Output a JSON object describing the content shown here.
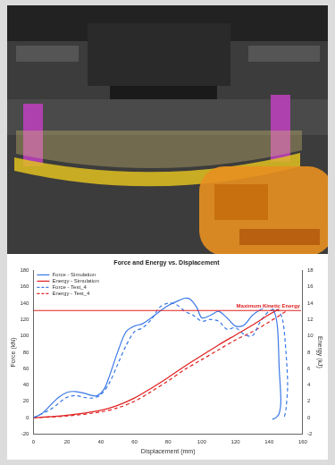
{
  "chart_data": {
    "type": "line",
    "title": "Force and Energy vs. Displacement",
    "x_label": "Displacement (mm)",
    "y_label": "Force (kN)",
    "y2_label": "Energy (kJ)",
    "xlim": [
      0,
      160
    ],
    "xticks": [
      0,
      20,
      40,
      60,
      80,
      100,
      120,
      140,
      160
    ],
    "ylim": [
      -20,
      180
    ],
    "yticks": [
      -20,
      0,
      20,
      40,
      60,
      80,
      100,
      120,
      140,
      160,
      180
    ],
    "y2lim": [
      -2,
      18
    ],
    "y2ticks": [
      -2,
      0,
      2,
      4,
      6,
      8,
      10,
      12,
      14,
      16,
      18
    ],
    "grid": false,
    "legend": "upper left",
    "series": [
      {
        "name": "Force - Simulation",
        "color": "#3a78e6",
        "line_style": "solid",
        "marker": "none",
        "x": [
          0,
          5,
          10,
          15,
          20,
          25,
          30,
          35,
          38,
          42,
          45,
          50,
          55,
          60,
          65,
          70,
          75,
          80,
          85,
          90,
          93,
          97,
          100,
          105,
          110,
          115,
          120,
          125,
          130,
          135,
          140,
          143,
          145,
          146,
          147,
          146,
          144,
          142
        ],
        "values": [
          0,
          5,
          15,
          25,
          31,
          32,
          30,
          27,
          27,
          35,
          50,
          80,
          105,
          112,
          115,
          122,
          130,
          137,
          142,
          146,
          145,
          135,
          122,
          125,
          130,
          122,
          112,
          113,
          125,
          132,
          137,
          130,
          110,
          60,
          20,
          5,
          0,
          -2
        ]
      },
      {
        "name": "Energy - Simulation",
        "color": "#e02020",
        "line_style": "solid",
        "marker": "none",
        "axis": "y2",
        "x": [
          0,
          20,
          40,
          50,
          60,
          70,
          80,
          90,
          100,
          110,
          120,
          130,
          140,
          146
        ],
        "values": [
          0,
          0.3,
          0.9,
          1.5,
          2.4,
          3.6,
          4.9,
          6.3,
          7.6,
          8.9,
          10.1,
          11.3,
          12.6,
          13.3
        ]
      },
      {
        "name": "Force - Test_4",
        "color": "#3a78e6",
        "line_style": "dashed",
        "marker": "none",
        "x": [
          0,
          10,
          20,
          25,
          30,
          35,
          40,
          45,
          50,
          55,
          60,
          65,
          70,
          75,
          80,
          85,
          90,
          95,
          100,
          105,
          110,
          115,
          120,
          125,
          130,
          135,
          140,
          145,
          148,
          150,
          151,
          150,
          149
        ],
        "values": [
          0,
          10,
          25,
          27,
          25,
          24,
          28,
          42,
          65,
          88,
          105,
          110,
          120,
          135,
          140,
          138,
          130,
          125,
          118,
          120,
          118,
          108,
          110,
          102,
          100,
          118,
          130,
          132,
          120,
          80,
          40,
          10,
          0
        ]
      },
      {
        "name": "Energy - Test_4",
        "color": "#e02020",
        "line_style": "dashed",
        "marker": "none",
        "axis": "y2",
        "x": [
          0,
          20,
          40,
          50,
          60,
          70,
          80,
          90,
          100,
          110,
          120,
          130,
          140,
          150
        ],
        "values": [
          0,
          0.2,
          0.7,
          1.2,
          2.0,
          3.2,
          4.5,
          5.9,
          7.1,
          8.3,
          9.5,
          10.5,
          11.7,
          13.0
        ]
      }
    ],
    "annotations": [
      {
        "text": "Maximum Kinetic Energy",
        "value": 13.1,
        "axis": "y2",
        "color": "#e02020"
      }
    ]
  }
}
